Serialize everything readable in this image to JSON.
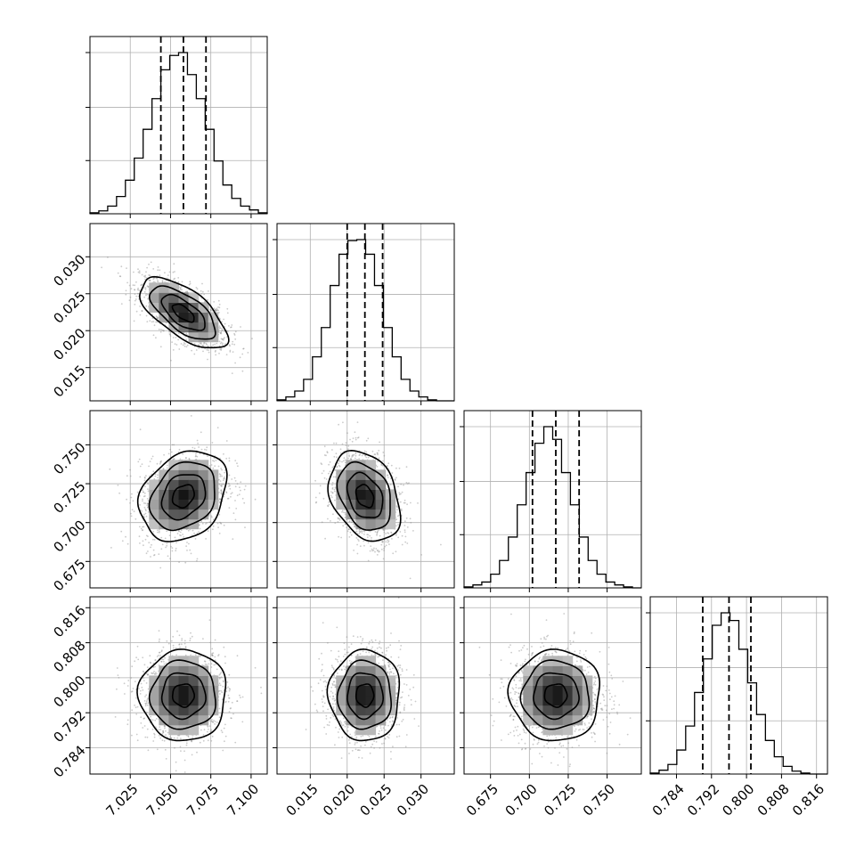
{
  "chart_data": {
    "type": "corner",
    "parameters": [
      {
        "range": [
          7.0,
          7.11
        ],
        "ticks": [
          7.025,
          7.05,
          7.075,
          7.1
        ],
        "tick_labels": [
          "7.025",
          "7.050",
          "7.075",
          "7.100"
        ],
        "quantiles": [
          7.044,
          7.058,
          7.072
        ],
        "hist_bins": [
          7.0,
          7.11,
          20
        ],
        "hist_counts": [
          1,
          3,
          8,
          18,
          35,
          58,
          88,
          120,
          150,
          165,
          168,
          145,
          120,
          88,
          55,
          30,
          16,
          8,
          4,
          1
        ],
        "mean": 7.058,
        "sd": 0.0135
      },
      {
        "range": [
          0.0105,
          0.0345
        ],
        "ticks": [
          0.015,
          0.02,
          0.025,
          0.03
        ],
        "tick_labels": [
          "0.015",
          "0.020",
          "0.025",
          "0.030"
        ],
        "quantiles": [
          0.02,
          0.0224,
          0.0248
        ],
        "hist_bins": [
          0.0105,
          0.0345,
          20
        ],
        "hist_counts": [
          1,
          4,
          10,
          22,
          45,
          75,
          118,
          150,
          164,
          165,
          150,
          118,
          75,
          45,
          22,
          10,
          4,
          1,
          0,
          0
        ],
        "mean": 0.0224,
        "sd": 0.0024
      },
      {
        "range": [
          0.658,
          0.772
        ],
        "ticks": [
          0.675,
          0.7,
          0.725,
          0.75
        ],
        "tick_labels": [
          "0.675",
          "0.700",
          "0.725",
          "0.750"
        ],
        "quantiles": [
          0.702,
          0.717,
          0.732
        ],
        "hist_bins": [
          0.658,
          0.772,
          20
        ],
        "hist_counts": [
          1,
          3,
          6,
          14,
          28,
          52,
          85,
          118,
          148,
          165,
          152,
          118,
          85,
          52,
          28,
          14,
          6,
          3,
          1,
          0
        ],
        "mean": 0.717,
        "sd": 0.0145
      },
      {
        "range": [
          0.778,
          0.8185
        ],
        "ticks": [
          0.784,
          0.792,
          0.8,
          0.808,
          0.816
        ],
        "tick_labels": [
          "0.784",
          "0.792",
          "0.800",
          "0.808",
          "0.816"
        ],
        "quantiles": [
          0.79,
          0.796,
          0.801
        ],
        "hist_bins": [
          0.778,
          0.8185,
          20
        ],
        "hist_counts": [
          1,
          4,
          10,
          25,
          50,
          85,
          120,
          155,
          168,
          160,
          130,
          95,
          62,
          35,
          18,
          8,
          3,
          1,
          0,
          0
        ],
        "mean": 0.796,
        "sd": 0.0052
      }
    ],
    "correlations": [
      [
        1.0,
        -0.65,
        0.25,
        0.0
      ],
      [
        -0.65,
        1.0,
        -0.3,
        0.0
      ],
      [
        0.25,
        -0.3,
        1.0,
        0.0
      ],
      [
        0.0,
        0.0,
        0.0,
        1.0
      ]
    ],
    "contour_levels_sigma": [
      0.5,
      1.0,
      1.5,
      2.0
    ],
    "grid": true
  }
}
